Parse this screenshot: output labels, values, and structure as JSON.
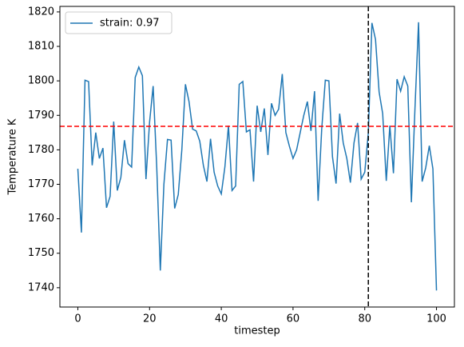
{
  "chart_data": {
    "type": "line",
    "xlabel": "timestep",
    "ylabel": "Temperature K",
    "x": [
      0,
      1,
      2,
      3,
      4,
      5,
      6,
      7,
      8,
      9,
      10,
      11,
      12,
      13,
      14,
      15,
      16,
      17,
      18,
      19,
      20,
      21,
      22,
      23,
      24,
      25,
      26,
      27,
      28,
      29,
      30,
      31,
      32,
      33,
      34,
      35,
      36,
      37,
      38,
      39,
      40,
      41,
      42,
      43,
      44,
      45,
      46,
      47,
      48,
      49,
      50,
      51,
      52,
      53,
      54,
      55,
      56,
      57,
      58,
      59,
      60,
      61,
      62,
      63,
      64,
      65,
      66,
      67,
      68,
      69,
      70,
      71,
      72,
      73,
      74,
      75,
      76,
      77,
      78,
      79,
      80,
      81,
      82,
      83,
      84,
      85,
      86,
      87,
      88,
      89,
      90,
      91,
      92,
      93,
      94,
      95,
      96,
      97,
      98,
      99,
      100
    ],
    "series": [
      {
        "name": "strain: 0.97",
        "color": "#1f77b4",
        "values": [
          1774.5,
          1756,
          1800.2,
          1799.8,
          1775.5,
          1785,
          1777.5,
          1780.5,
          1763.2,
          1766.5,
          1788.2,
          1768.2,
          1772,
          1782.8,
          1776,
          1775,
          1801,
          1804,
          1801.5,
          1771.5,
          1788,
          1798.5,
          1775,
          1745,
          1770,
          1783,
          1782.8,
          1763,
          1767,
          1780,
          1799,
          1794,
          1786,
          1785.5,
          1782.5,
          1775.5,
          1770.8,
          1783.2,
          1773.5,
          1769.5,
          1767.2,
          1775,
          1787,
          1768.2,
          1769.5,
          1799,
          1799.8,
          1785.2,
          1785.8,
          1770.8,
          1792.8,
          1785.2,
          1792,
          1778.5,
          1793.5,
          1790,
          1791.8,
          1802,
          1785,
          1781,
          1777.5,
          1780,
          1785,
          1790,
          1794,
          1785.5,
          1797,
          1765.2,
          1786,
          1800.2,
          1800,
          1778,
          1770.2,
          1790.5,
          1782,
          1777.5,
          1770.5,
          1782,
          1787.8,
          1771.5,
          1773.5,
          1785,
          1816.8,
          1812,
          1796.8,
          1790.5,
          1771,
          1787,
          1773.2,
          1800.5,
          1797,
          1801.2,
          1798.5,
          1764.8,
          1792,
          1817,
          1770.8,
          1774.8,
          1781.2,
          1774.5,
          1739.2
        ]
      }
    ],
    "hlines": [
      {
        "value": 1786.8,
        "color": "#ff0000"
      }
    ],
    "vlines": [
      {
        "value": 81,
        "color": "#000000"
      }
    ],
    "xlim": [
      -5,
      105
    ],
    "ylim": [
      1734.4,
      1821.6
    ],
    "xticks": [
      0,
      20,
      40,
      60,
      80,
      100
    ],
    "yticks": [
      1740,
      1750,
      1760,
      1770,
      1780,
      1790,
      1800,
      1810,
      1820
    ],
    "legend": "upper-left"
  }
}
